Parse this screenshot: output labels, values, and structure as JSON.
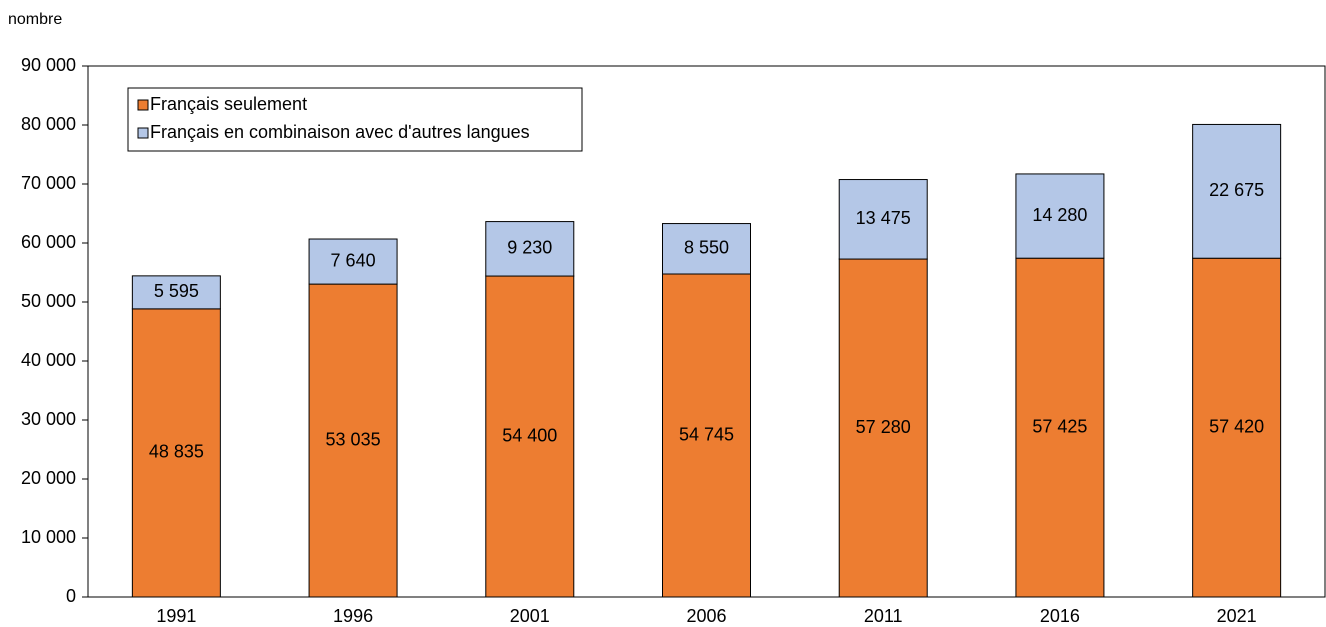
{
  "chart_data": {
    "type": "stacked_bar",
    "ylabel": "nombre",
    "categories": [
      "1991",
      "1996",
      "2001",
      "2006",
      "2011",
      "2016",
      "2021"
    ],
    "series": [
      {
        "name": "Français seulement",
        "color": "#ed7d31",
        "values": [
          48835,
          53035,
          54400,
          54745,
          57280,
          57425,
          57420
        ],
        "value_labels": [
          "48 835",
          "53 035",
          "54 400",
          "54 745",
          "57 280",
          "57 425",
          "57 420"
        ]
      },
      {
        "name": "Français en combinaison avec d'autres langues",
        "color": "#b4c7e7",
        "values": [
          5595,
          7640,
          9230,
          8550,
          13475,
          14280,
          22675
        ],
        "value_labels": [
          "5 595",
          "7 640",
          "9 230",
          "8 550",
          "13 475",
          "14 280",
          "22 675"
        ]
      }
    ],
    "ylim": [
      0,
      90000
    ],
    "yticks": [
      0,
      {
        "value": 10000,
        "label": "10 000"
      },
      {
        "value": 20000,
        "label": "20 000"
      },
      {
        "value": 30000,
        "label": "30 000"
      },
      {
        "value": 40000,
        "label": "40 000"
      },
      {
        "value": 50000,
        "label": "50 000"
      },
      {
        "value": 60000,
        "label": "60 000"
      },
      {
        "value": 70000,
        "label": "70 000"
      },
      {
        "value": 80000,
        "label": "80 000"
      },
      {
        "value": 90000,
        "label": "90 000"
      }
    ],
    "grid": false,
    "legend": "top-left"
  }
}
